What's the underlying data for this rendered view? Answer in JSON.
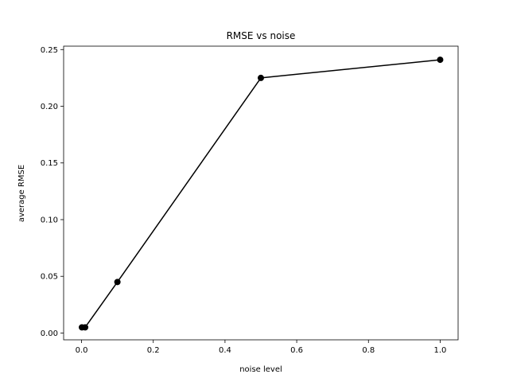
{
  "chart_data": {
    "type": "line",
    "title": "RMSE vs noise",
    "xlabel": "noise level",
    "ylabel": "average RMSE",
    "xlim": [
      -0.05,
      1.05
    ],
    "ylim": [
      -0.006,
      0.253
    ],
    "xticks": [
      0.0,
      0.2,
      0.4,
      0.6,
      0.8,
      1.0
    ],
    "xtick_labels": [
      "0.0",
      "0.2",
      "0.4",
      "0.6",
      "0.8",
      "1.0"
    ],
    "yticks": [
      0.0,
      0.05,
      0.1,
      0.15,
      0.2,
      0.25
    ],
    "ytick_labels": [
      "0.00",
      "0.05",
      "0.10",
      "0.15",
      "0.20",
      "0.25"
    ],
    "grid": false,
    "legend": "none",
    "series": [
      {
        "color": "#000000",
        "marker": "circle",
        "x": [
          0.001,
          0.01,
          0.1,
          0.5,
          1.0
        ],
        "y": [
          0.005,
          0.005,
          0.045,
          0.225,
          0.241
        ]
      }
    ]
  }
}
